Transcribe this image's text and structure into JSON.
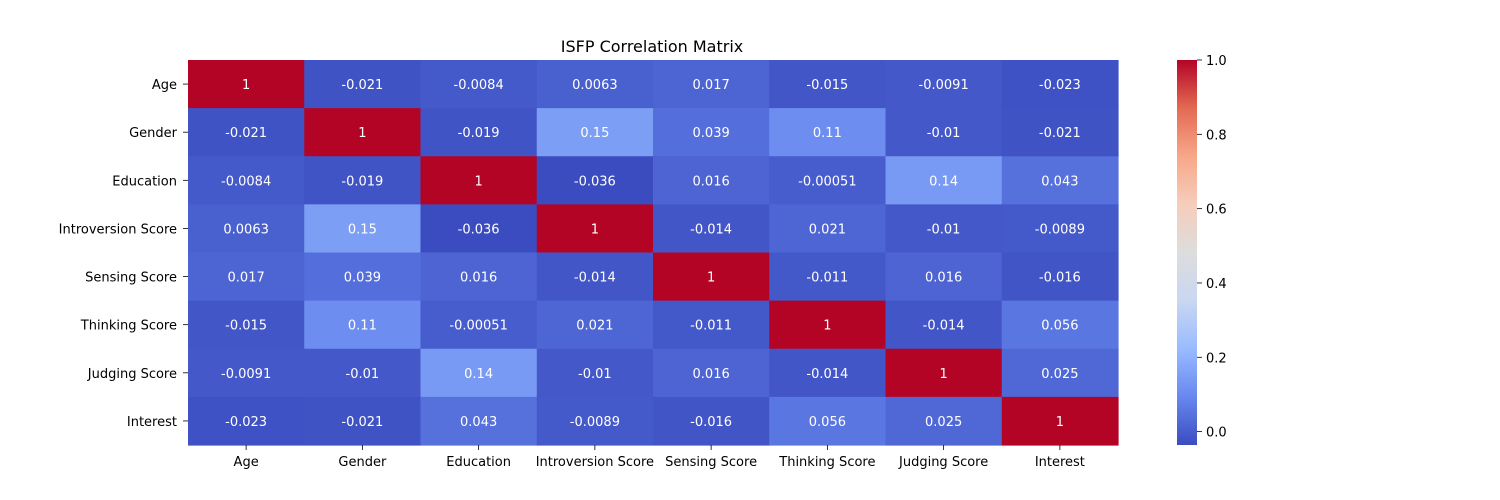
{
  "chart_data": {
    "type": "heatmap",
    "title": "ISFP Correlation Matrix",
    "xlabel": "",
    "ylabel": "",
    "x_categories": [
      "Age",
      "Gender",
      "Education",
      "Introversion Score",
      "Sensing Score",
      "Thinking Score",
      "Judging Score",
      "Interest"
    ],
    "y_categories": [
      "Age",
      "Gender",
      "Education",
      "Introversion Score",
      "Sensing Score",
      "Thinking Score",
      "Judging Score",
      "Interest"
    ],
    "values": [
      [
        1,
        -0.021,
        -0.0084,
        0.0063,
        0.017,
        -0.015,
        -0.0091,
        -0.023
      ],
      [
        -0.021,
        1,
        -0.019,
        0.15,
        0.039,
        0.11,
        -0.01,
        -0.021
      ],
      [
        -0.0084,
        -0.019,
        1,
        -0.036,
        0.016,
        -0.00051,
        0.14,
        0.043
      ],
      [
        0.0063,
        0.15,
        -0.036,
        1,
        -0.014,
        0.021,
        -0.01,
        -0.0089
      ],
      [
        0.017,
        0.039,
        0.016,
        -0.014,
        1,
        -0.011,
        0.016,
        -0.016
      ],
      [
        -0.015,
        0.11,
        -0.00051,
        0.021,
        -0.011,
        1,
        -0.014,
        0.056
      ],
      [
        -0.0091,
        -0.01,
        0.14,
        -0.01,
        0.016,
        -0.014,
        1,
        0.025
      ],
      [
        -0.023,
        -0.021,
        0.043,
        -0.0089,
        -0.016,
        0.056,
        0.025,
        1
      ]
    ],
    "annotations": [
      [
        "1",
        "-0.021",
        "-0.0084",
        "0.0063",
        "0.017",
        "-0.015",
        "-0.0091",
        "-0.023"
      ],
      [
        "-0.021",
        "1",
        "-0.019",
        "0.15",
        "0.039",
        "0.11",
        "-0.01",
        "-0.021"
      ],
      [
        "-0.0084",
        "-0.019",
        "1",
        "-0.036",
        "0.016",
        "-0.00051",
        "0.14",
        "0.043"
      ],
      [
        "0.0063",
        "0.15",
        "-0.036",
        "1",
        "-0.014",
        "0.021",
        "-0.01",
        "-0.0089"
      ],
      [
        "0.017",
        "0.039",
        "0.016",
        "-0.014",
        "1",
        "-0.011",
        "0.016",
        "-0.016"
      ],
      [
        "-0.015",
        "0.11",
        "-0.00051",
        "0.021",
        "-0.011",
        "1",
        "-0.014",
        "0.056"
      ],
      [
        "-0.0091",
        "-0.01",
        "0.14",
        "-0.01",
        "0.016",
        "-0.014",
        "1",
        "0.025"
      ],
      [
        "-0.023",
        "-0.021",
        "0.043",
        "-0.0089",
        "-0.016",
        "0.056",
        "0.025",
        "1"
      ]
    ],
    "colormap": "coolwarm",
    "colormap_stops": [
      "#3b4cc0",
      "#6788ee",
      "#9abbff",
      "#c9d7f0",
      "#dddddd",
      "#f6cdbc",
      "#f7a789",
      "#e36a53",
      "#b40426"
    ],
    "vmin": -0.036,
    "vmax": 1,
    "colorbar": {
      "ticks": [
        0.0,
        0.2,
        0.4,
        0.6,
        0.8,
        1.0
      ],
      "tick_labels": [
        "0.0",
        "0.2",
        "0.4",
        "0.6",
        "0.8",
        "1.0"
      ],
      "placement": "right"
    },
    "grid": false
  }
}
